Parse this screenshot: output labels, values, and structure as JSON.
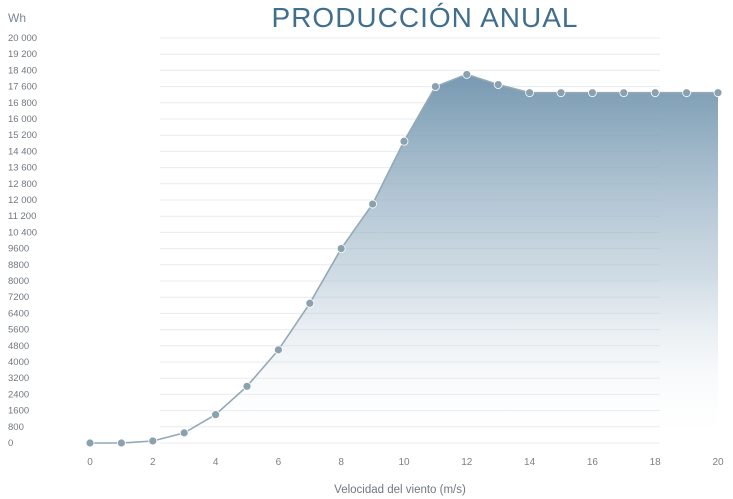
{
  "chart_data": {
    "type": "area",
    "title": "PRODUCCIÓN ANUAL",
    "ylabel": "Wh",
    "xlabel": "Velocidad del viento (m/s)",
    "yticks": [
      "20 000",
      "19 200",
      "18 400",
      "17 600",
      "16 800",
      "16 000",
      "15 200",
      "14 400",
      "13 600",
      "12 800",
      "12 000",
      "11 200",
      "10 400",
      "9600",
      "8800",
      "8000",
      "7200",
      "6400",
      "5600",
      "4800",
      "4000",
      "3200",
      "2400",
      "1600",
      "800",
      "0"
    ],
    "xticks": [
      "0",
      "2",
      "4",
      "6",
      "8",
      "10",
      "12",
      "14",
      "16",
      "18",
      "20"
    ],
    "ylim": [
      0,
      20000
    ],
    "xlim": [
      0,
      20
    ],
    "x": [
      0,
      1,
      2,
      3,
      4,
      5,
      6,
      7,
      8,
      9,
      10,
      11,
      12,
      13,
      14,
      15,
      16,
      17,
      18,
      19,
      20
    ],
    "y": [
      0,
      0,
      100,
      500,
      1400,
      2800,
      4600,
      6900,
      9600,
      11800,
      14900,
      17600,
      18200,
      17700,
      17300,
      17300,
      17300,
      17300,
      17300,
      17300,
      17300
    ],
    "grid": true,
    "colors": {
      "title": "#3f6f8c",
      "fill_top": "#6f93ad",
      "fill_bottom": "#ffffff",
      "line": "#94a8b5",
      "point": "#8aa1b0"
    }
  }
}
